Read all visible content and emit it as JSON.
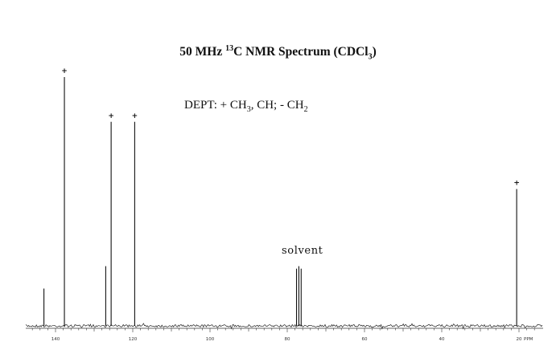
{
  "title": {
    "prefix": "50 MHz ",
    "isotope_mass": "13",
    "middle": "C NMR Spectrum (CDCl",
    "sub": "3",
    "suffix": ")"
  },
  "dept": {
    "part1": "DEPT: + CH",
    "sub1": "3",
    "part2": ", CH; - CH",
    "sub2": "2"
  },
  "solvent_label": "solvent",
  "chart_data": {
    "type": "line",
    "title": "50 MHz 13C NMR Spectrum (CDCl3)",
    "xlabel": "PPM",
    "x_unit_label": "PPM",
    "xlim": [
      150,
      15
    ],
    "x_reversed": true,
    "x_tick_labels": [
      "140",
      "120",
      "100",
      "80",
      "60",
      "40",
      "20"
    ],
    "x_tick_values": [
      140,
      120,
      100,
      80,
      60,
      40,
      20
    ],
    "grid": false,
    "peaks": [
      {
        "ppm": 143.0,
        "intensity": 0.15,
        "dept": ""
      },
      {
        "ppm": 137.7,
        "intensity": 1.0,
        "dept": "+"
      },
      {
        "ppm": 127.0,
        "intensity": 0.24,
        "dept": ""
      },
      {
        "ppm": 125.6,
        "intensity": 0.82,
        "dept": "+"
      },
      {
        "ppm": 119.5,
        "intensity": 0.82,
        "dept": "+"
      },
      {
        "ppm": 77.6,
        "intensity": 0.23,
        "dept": ""
      },
      {
        "ppm": 77.0,
        "intensity": 0.24,
        "dept": ""
      },
      {
        "ppm": 76.4,
        "intensity": 0.23,
        "dept": ""
      },
      {
        "ppm": 20.6,
        "intensity": 0.55,
        "dept": "+"
      }
    ],
    "annotations": [
      "solvent",
      "+"
    ]
  }
}
